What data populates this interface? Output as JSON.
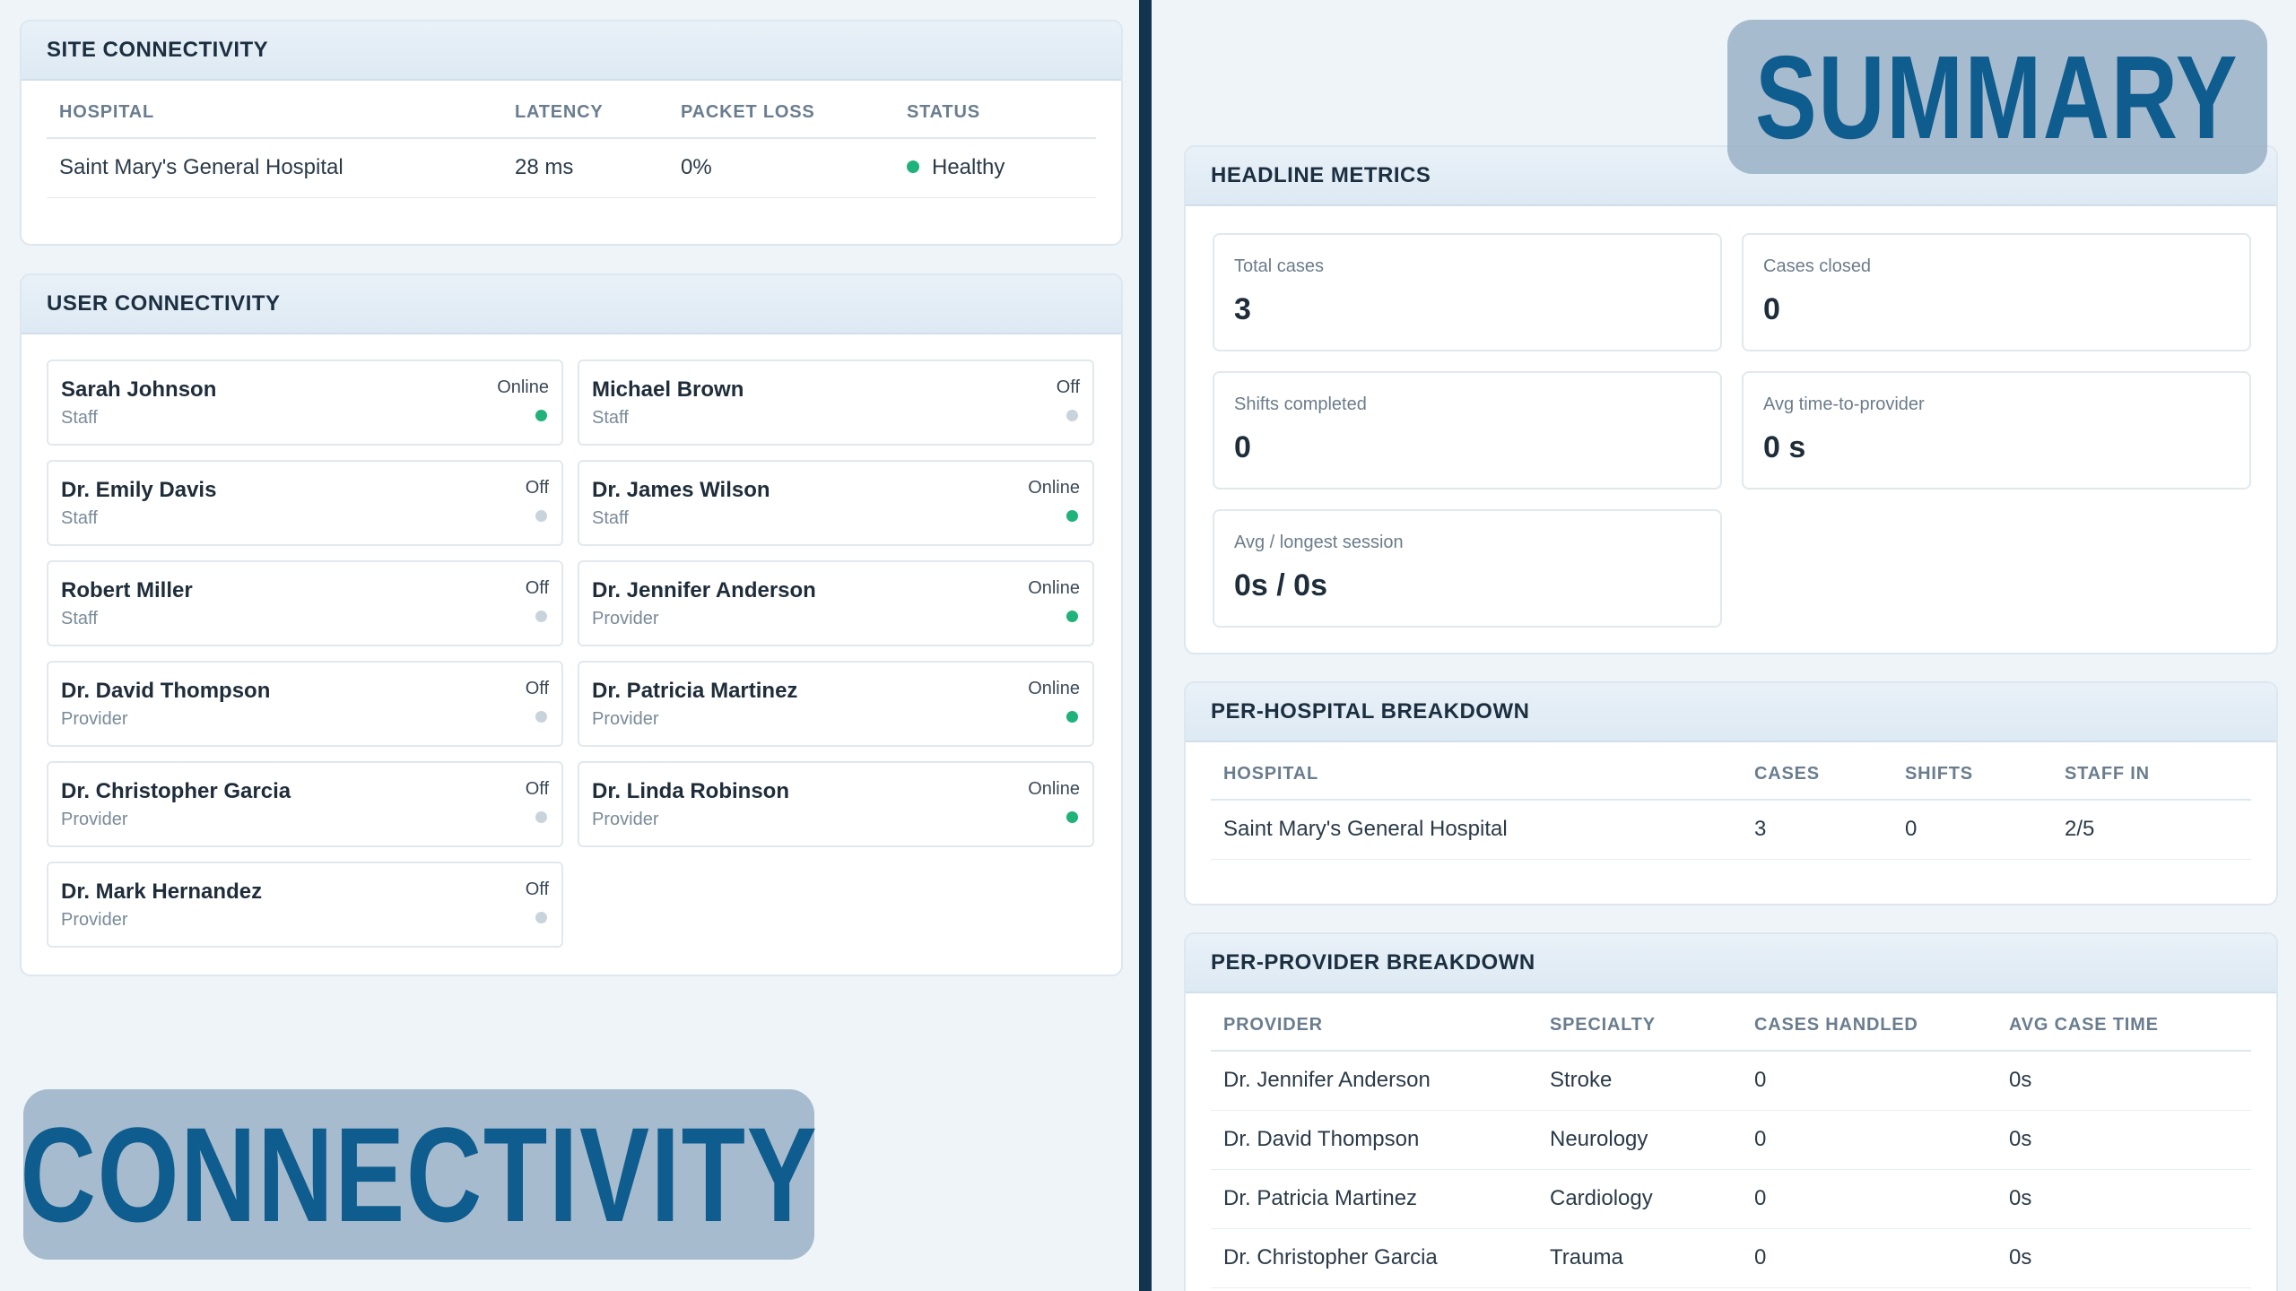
{
  "site_connectivity": {
    "title": "SITE CONNECTIVITY",
    "headers": [
      "HOSPITAL",
      "LATENCY",
      "PACKET LOSS",
      "STATUS"
    ],
    "rows": [
      {
        "hospital": "Saint Mary's General Hospital",
        "latency": "28 ms",
        "packet_loss": "0%",
        "status": "Healthy",
        "status_color": "#1fb27a"
      }
    ]
  },
  "user_connectivity": {
    "title": "USER CONNECTIVITY",
    "users": [
      {
        "name": "Sarah Johnson",
        "role": "Staff",
        "status": "Online"
      },
      {
        "name": "Michael Brown",
        "role": "Staff",
        "status": "Off"
      },
      {
        "name": "Dr. Emily Davis",
        "role": "Staff",
        "status": "Off"
      },
      {
        "name": "Dr. James Wilson",
        "role": "Staff",
        "status": "Online"
      },
      {
        "name": "Robert Miller",
        "role": "Staff",
        "status": "Off"
      },
      {
        "name": "Dr. Jennifer Anderson",
        "role": "Provider",
        "status": "Online"
      },
      {
        "name": "Dr. David Thompson",
        "role": "Provider",
        "status": "Off"
      },
      {
        "name": "Dr. Patricia Martinez",
        "role": "Provider",
        "status": "Online"
      },
      {
        "name": "Dr. Christopher Garcia",
        "role": "Provider",
        "status": "Off"
      },
      {
        "name": "Dr. Linda Robinson",
        "role": "Provider",
        "status": "Online"
      },
      {
        "name": "Dr. Mark Hernandez",
        "role": "Provider",
        "status": "Off"
      }
    ],
    "online_color": "#1fb27a",
    "off_color": "#c9d3dc"
  },
  "headline_metrics": {
    "title": "HEADLINE METRICS",
    "items": [
      {
        "label": "Total cases",
        "value": "3"
      },
      {
        "label": "Cases closed",
        "value": "0"
      },
      {
        "label": "Shifts completed",
        "value": "0"
      },
      {
        "label": "Avg time-to-provider",
        "value": "0 s"
      },
      {
        "label": "Avg / longest session",
        "value": "0s / 0s"
      }
    ]
  },
  "per_hospital": {
    "title": "PER-HOSPITAL BREAKDOWN",
    "headers": [
      "HOSPITAL",
      "CASES",
      "SHIFTS",
      "STAFF IN"
    ],
    "rows": [
      {
        "hospital": "Saint Mary's General Hospital",
        "cases": "3",
        "shifts": "0",
        "staff_in": "2/5"
      }
    ]
  },
  "per_provider": {
    "title": "PER-PROVIDER BREAKDOWN",
    "headers": [
      "PROVIDER",
      "SPECIALTY",
      "CASES HANDLED",
      "AVG CASE TIME"
    ],
    "rows": [
      {
        "provider": "Dr. Jennifer Anderson",
        "specialty": "Stroke",
        "cases": "0",
        "avg": "0s"
      },
      {
        "provider": "Dr. David Thompson",
        "specialty": "Neurology",
        "cases": "0",
        "avg": "0s"
      },
      {
        "provider": "Dr. Patricia Martinez",
        "specialty": "Cardiology",
        "cases": "0",
        "avg": "0s"
      },
      {
        "provider": "Dr. Christopher Garcia",
        "specialty": "Trauma",
        "cases": "0",
        "avg": "0s"
      }
    ]
  },
  "overlays": {
    "summary": "SUMMARY",
    "connectivity": "CONNECTIVITY"
  },
  "colors": {
    "accent": "#0f5c8e",
    "divider": "#12344f"
  }
}
